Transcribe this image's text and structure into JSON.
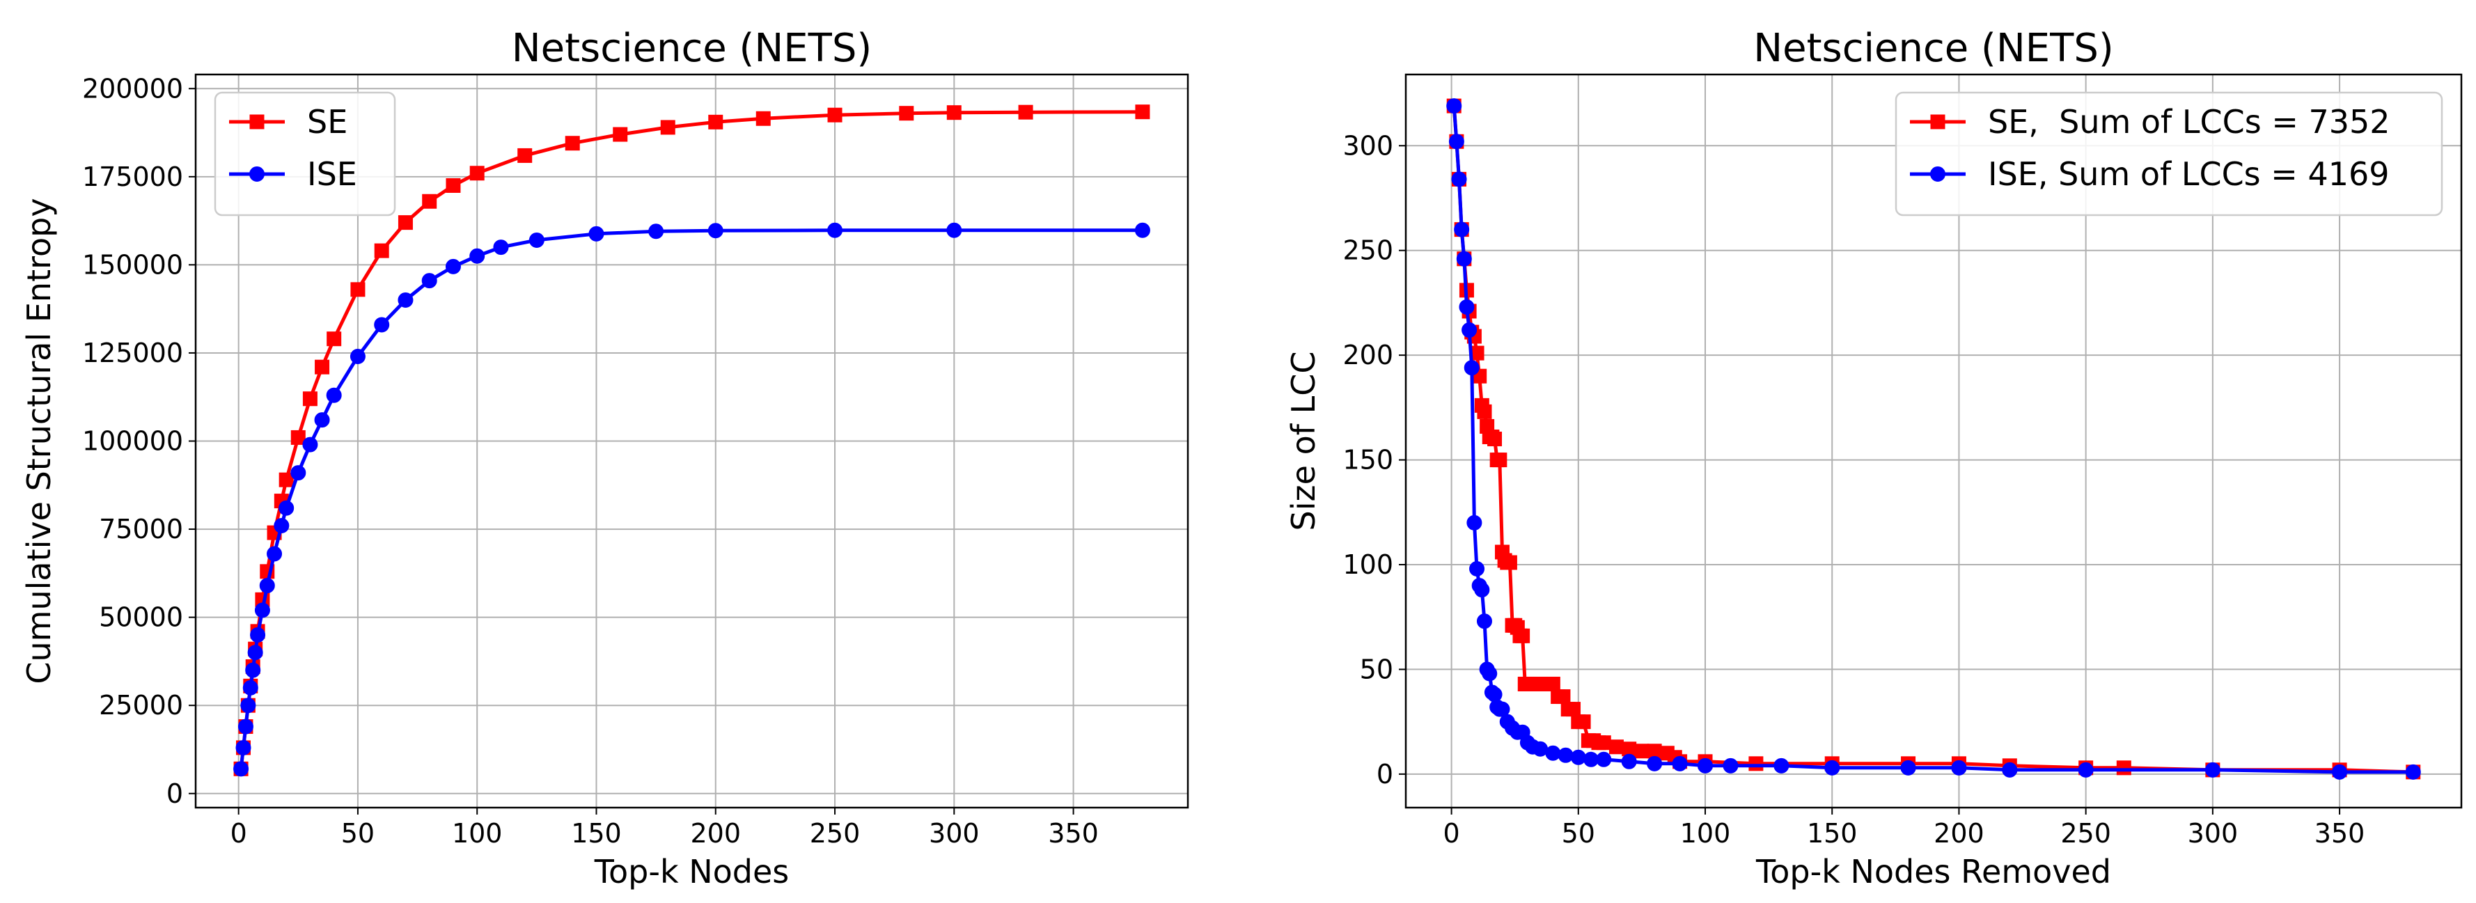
{
  "chart_data": [
    {
      "type": "line",
      "title": "Netscience (NETS)",
      "xlabel": "Top-k Nodes",
      "ylabel": "Cumulative Structural Entropy",
      "xlim": [
        -18,
        398
      ],
      "ylim": [
        -4000,
        204000
      ],
      "xticks": [
        0,
        50,
        100,
        150,
        200,
        250,
        300,
        350
      ],
      "yticks": [
        0,
        25000,
        50000,
        75000,
        100000,
        125000,
        150000,
        175000,
        200000
      ],
      "grid": true,
      "legend_position": "top-left",
      "series": [
        {
          "name": "SE",
          "color": "#ff0000",
          "marker": "square",
          "x": [
            1,
            2,
            3,
            4,
            5,
            6,
            7,
            8,
            10,
            12,
            15,
            18,
            20,
            25,
            30,
            35,
            40,
            50,
            60,
            70,
            80,
            90,
            100,
            120,
            140,
            160,
            180,
            200,
            220,
            250,
            280,
            300,
            330,
            379
          ],
          "y": [
            7000,
            13000,
            19000,
            25000,
            30500,
            36000,
            41000,
            46000,
            55000,
            63000,
            74000,
            83000,
            89000,
            101000,
            112000,
            121000,
            129000,
            143000,
            154000,
            162000,
            168000,
            172500,
            176000,
            181000,
            184500,
            187000,
            189000,
            190500,
            191500,
            192500,
            193000,
            193200,
            193300,
            193400
          ]
        },
        {
          "name": "ISE",
          "color": "#0000ff",
          "marker": "circle",
          "x": [
            1,
            2,
            3,
            4,
            5,
            6,
            7,
            8,
            10,
            12,
            15,
            18,
            20,
            25,
            30,
            35,
            40,
            50,
            60,
            70,
            80,
            90,
            100,
            110,
            125,
            150,
            175,
            200,
            250,
            300,
            379
          ],
          "y": [
            7000,
            13000,
            19000,
            25000,
            30000,
            35000,
            40000,
            45000,
            52000,
            59000,
            68000,
            76000,
            81000,
            91000,
            99000,
            106000,
            113000,
            124000,
            133000,
            140000,
            145500,
            149500,
            152500,
            155000,
            157000,
            158800,
            159500,
            159700,
            159800,
            159800,
            159800
          ]
        }
      ]
    },
    {
      "type": "line",
      "title": "Netscience (NETS)",
      "xlabel": "Top-k Nodes Removed",
      "ylabel": "Size of LCC",
      "xlim": [
        -18,
        398
      ],
      "ylim": [
        -16,
        334
      ],
      "xticks": [
        0,
        50,
        100,
        150,
        200,
        250,
        300,
        350
      ],
      "yticks": [
        0,
        50,
        100,
        150,
        200,
        250,
        300
      ],
      "grid": true,
      "legend_position": "top-right",
      "series": [
        {
          "name": "SE,  Sum of LCCs = 7352",
          "color": "#ff0000",
          "marker": "square",
          "x": [
            1,
            2,
            3,
            4,
            5,
            6,
            7,
            8,
            9,
            10,
            11,
            12,
            13,
            14,
            15,
            16,
            17,
            18,
            19,
            20,
            21,
            22,
            23,
            24,
            25,
            26,
            27,
            28,
            29,
            30,
            31,
            35,
            40,
            42,
            44,
            46,
            48,
            50,
            52,
            54,
            56,
            58,
            60,
            65,
            70,
            75,
            80,
            85,
            88,
            90,
            100,
            120,
            150,
            180,
            200,
            220,
            250,
            265,
            300,
            350,
            379
          ],
          "y": [
            319,
            302,
            284,
            260,
            246,
            231,
            221,
            211,
            209,
            201,
            190,
            176,
            173,
            166,
            161,
            161,
            160,
            150,
            150,
            106,
            102,
            101,
            101,
            71,
            71,
            70,
            66,
            66,
            43,
            43,
            43,
            43,
            43,
            37,
            37,
            31,
            31,
            25,
            25,
            16,
            16,
            15,
            15,
            13,
            12,
            11,
            11,
            10,
            8,
            6,
            6,
            5,
            5,
            5,
            5,
            4,
            3,
            3,
            2,
            2,
            1
          ]
        },
        {
          "name": "ISE, Sum of LCCs = 4169",
          "color": "#0000ff",
          "marker": "circle",
          "x": [
            1,
            2,
            3,
            4,
            5,
            6,
            7,
            8,
            9,
            10,
            11,
            12,
            13,
            14,
            15,
            16,
            17,
            18,
            19,
            20,
            22,
            24,
            26,
            28,
            30,
            32,
            35,
            40,
            45,
            50,
            55,
            60,
            70,
            80,
            90,
            100,
            110,
            130,
            150,
            180,
            200,
            220,
            250,
            300,
            350,
            379
          ],
          "y": [
            319,
            302,
            284,
            260,
            246,
            223,
            212,
            194,
            120,
            98,
            90,
            88,
            73,
            50,
            48,
            39,
            38,
            32,
            31,
            31,
            25,
            22,
            20,
            20,
            15,
            13,
            12,
            10,
            9,
            8,
            7,
            7,
            6,
            5,
            5,
            4,
            4,
            4,
            3,
            3,
            3,
            2,
            2,
            2,
            1,
            1
          ]
        }
      ]
    }
  ]
}
